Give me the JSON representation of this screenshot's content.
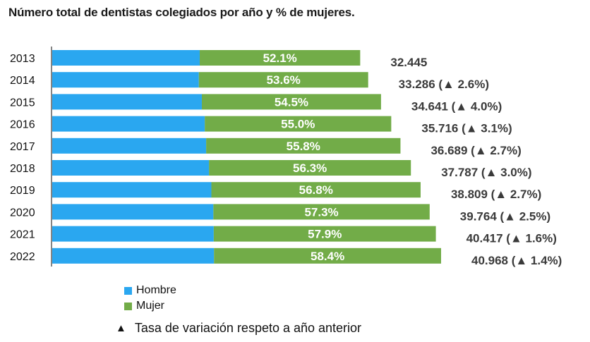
{
  "title": "Número total de dentistas colegiados por año y % de mujeres.",
  "colors": {
    "hombre": "#2aa7f0",
    "mujer": "#72ac48"
  },
  "legend": {
    "hombre": "Hombre",
    "mujer": "Mujer",
    "note": "Tasa de variación respeto a año anterior",
    "note_icon": "triangle-up-icon"
  },
  "chart_data": {
    "type": "bar",
    "orientation": "horizontal",
    "stacked": true,
    "title": "Número total de dentistas colegiados por año y % de mujeres.",
    "categories": [
      "2013",
      "2014",
      "2015",
      "2016",
      "2017",
      "2018",
      "2019",
      "2020",
      "2021",
      "2022"
    ],
    "totals": [
      32445,
      33286,
      34641,
      35716,
      36689,
      37787,
      38809,
      39764,
      40417,
      40968
    ],
    "female_pct": [
      52.1,
      53.6,
      54.5,
      55.0,
      55.8,
      56.3,
      56.8,
      57.3,
      57.9,
      58.4
    ],
    "series": [
      {
        "name": "Hombre",
        "values": [
          15541,
          15445,
          15762,
          16072,
          16216,
          16513,
          16765,
          16977,
          17016,
          17043
        ]
      },
      {
        "name": "Mujer",
        "values": [
          16904,
          17841,
          18879,
          19644,
          20473,
          21274,
          22044,
          22787,
          23401,
          23925
        ]
      }
    ],
    "labels": {
      "pct": [
        "52.1%",
        "53.6%",
        "54.5%",
        "55.0%",
        "55.8%",
        "56.3%",
        "56.8%",
        "57.3%",
        "57.9%",
        "58.4%"
      ],
      "total": [
        "32.445",
        "33.286",
        "34.641",
        "35.716",
        "36.689",
        "37.787",
        "38.809",
        "39.764",
        "40.417",
        "40.968"
      ],
      "variation": [
        "",
        "(▲ 2.6%)",
        "(▲ 4.0%)",
        "(▲ 3.1%)",
        "(▲ 2.7%)",
        "(▲ 3.0%)",
        "(▲ 2.7%)",
        "(▲ 2.5%)",
        "(▲ 1.6%)",
        "(▲ 1.4%)"
      ]
    },
    "legend_position": "bottom-left",
    "grid": false
  }
}
